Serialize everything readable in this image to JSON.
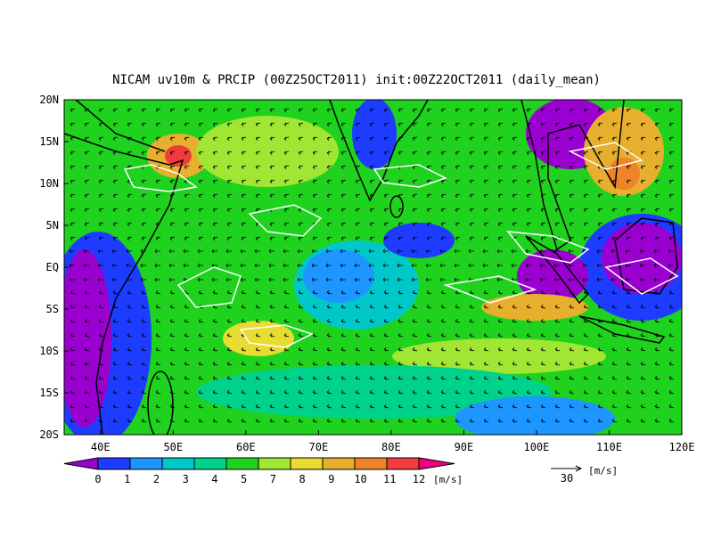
{
  "title": "NICAM uv10m & PRCIP (00Z25OCT2011) init:00Z22OCT2011 (daily_mean)",
  "lat_labels": [
    "20N",
    "15N",
    "10N",
    "5N",
    "EQ",
    "5S",
    "10S",
    "15S",
    "20S"
  ],
  "lon_labels": [
    "40E",
    "50E",
    "60E",
    "70E",
    "80E",
    "90E",
    "100E",
    "110E",
    "120E"
  ],
  "colorbar": {
    "labels": [
      "0",
      "1",
      "2",
      "3",
      "4",
      "5",
      "7",
      "8",
      "9",
      "10",
      "11",
      "12"
    ],
    "colors": [
      "#9a00d0",
      "#1e3cff",
      "#1e96ff",
      "#00c8c8",
      "#00d28c",
      "#1ed21e",
      "#a0e632",
      "#e6dc32",
      "#e6af2d",
      "#f08228",
      "#f03c3c",
      "#f00082"
    ],
    "unit": "[m/s]"
  },
  "vector_ref": {
    "value": "30",
    "unit": "[m/s]"
  }
}
